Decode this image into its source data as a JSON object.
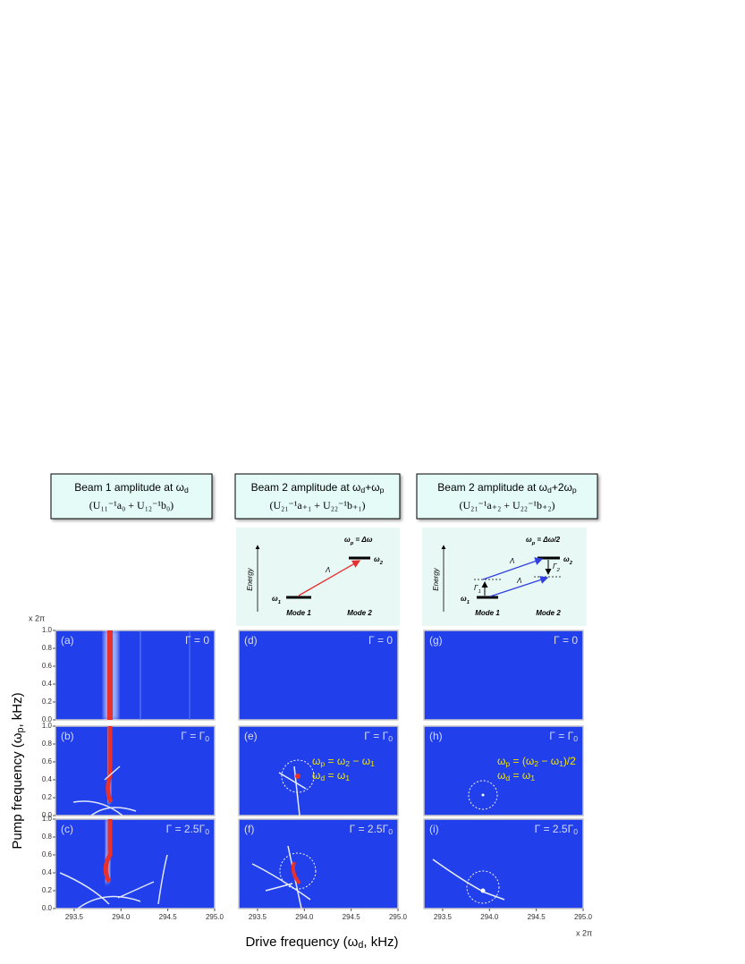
{
  "headers": [
    {
      "title": [
        "Beam 1 amplitude at ω",
        "d"
      ],
      "formula": "(U₁₁⁻¹a₀ + U₁₂⁻¹b₀)"
    },
    {
      "title": [
        "Beam 2 amplitude at ω",
        "d",
        "+ω",
        "p"
      ],
      "formula": "(U₂₁⁻¹a₊₁ + U₂₂⁻¹b₊₁)"
    },
    {
      "title": [
        "Beam 2 amplitude at ω",
        "d",
        "+2ω",
        "p"
      ],
      "formula": "(U₂₁⁻¹a₊₂ + U₂₂⁻¹b₊₂)"
    }
  ],
  "diagrams": [
    {
      "condition": [
        "ω",
        "p",
        " = Δω"
      ],
      "axis": "Energy",
      "level1": [
        "ω",
        "1"
      ],
      "level2": [
        "ω",
        "2"
      ],
      "coupling": "Λ",
      "mode1": "Mode 1",
      "mode2": "Mode 2"
    },
    {
      "condition": [
        "ω",
        "p",
        " = Δω/2"
      ],
      "axis": "Energy",
      "level1": [
        "ω",
        "1"
      ],
      "level2": [
        "ω",
        "2"
      ],
      "coupling": "Λ",
      "coupling2": "Λ",
      "decay1": [
        "Γ",
        "1"
      ],
      "decay2": [
        "Γ",
        "2"
      ],
      "mode1": "Mode 1",
      "mode2": "Mode 2"
    }
  ],
  "panels": [
    {
      "label": "(a)",
      "gamma": [
        "Γ = 0"
      ]
    },
    {
      "label": "(b)",
      "gamma": [
        "Γ = Γ",
        "0"
      ]
    },
    {
      "label": "(c)",
      "gamma": [
        "Γ = 2.5Γ",
        "0"
      ]
    },
    {
      "label": "(d)",
      "gamma": [
        "Γ = 0"
      ]
    },
    {
      "label": "(e)",
      "gamma": [
        "Γ = Γ",
        "0"
      ],
      "annotation": [
        [
          "ω",
          "p",
          " = ω",
          "2",
          " − ω",
          "1"
        ],
        [
          "ω",
          "d",
          " = ω",
          "1"
        ]
      ]
    },
    {
      "label": "(f)",
      "gamma": [
        "Γ = 2.5Γ",
        "0"
      ]
    },
    {
      "label": "(g)",
      "gamma": [
        "Γ = 0"
      ]
    },
    {
      "label": "(h)",
      "gamma": [
        "Γ = Γ",
        "0"
      ],
      "annotation": [
        [
          "ω",
          "p",
          " = (ω",
          "2",
          " − ω",
          "1",
          ")/2"
        ],
        [
          "ω",
          "d",
          " = ω",
          "1"
        ]
      ]
    },
    {
      "label": "(i)",
      "gamma": [
        "Γ = 2.5Γ",
        "0"
      ]
    }
  ],
  "y_label": [
    "Pump frequency (ω",
    "p",
    ", kHz)"
  ],
  "x_label": [
    "Drive frequency (ω",
    "d",
    ", kHz)"
  ],
  "y_unit": "x 2π",
  "x_unit": "x 2π",
  "ylim": [
    0,
    1
  ],
  "yticks": [
    {
      "value": 0,
      "label": "0.0"
    },
    0.2,
    0.4,
    0.6,
    0.8,
    {
      "value": 1,
      "label": "1.0"
    }
  ],
  "xlim": [
    293.3,
    295.0
  ],
  "xticks": [
    293.5,
    {
      "value": 294,
      "label": "294.0"
    },
    294.5,
    {
      "value": 295,
      "label": "295.0"
    }
  ]
}
